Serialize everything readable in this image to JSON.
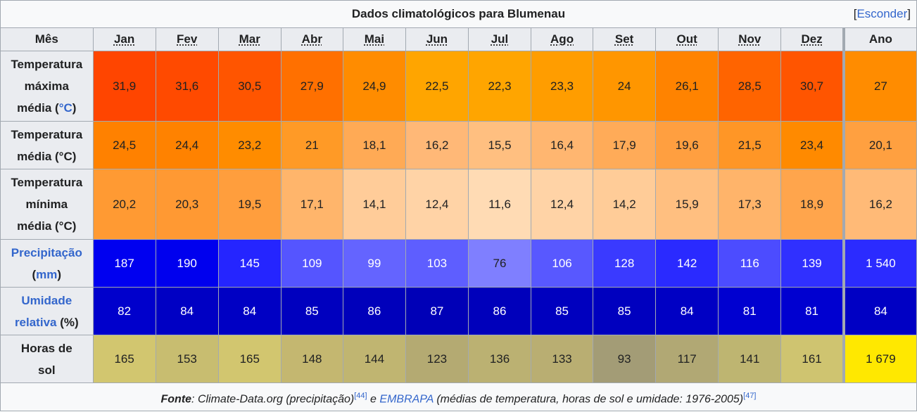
{
  "caption": {
    "title": "Dados climatológicos para Blumenau",
    "toggle_open": "[",
    "toggle_label": "Esconder",
    "toggle_close": "]"
  },
  "header": {
    "label": "Mês",
    "months": [
      "Jan",
      "Fev",
      "Mar",
      "Abr",
      "Mai",
      "Jun",
      "Jul",
      "Ago",
      "Set",
      "Out",
      "Nov",
      "Dez"
    ],
    "annual": "Ano"
  },
  "rows": [
    {
      "id": "tmax",
      "label_lines": [
        "Temperatura",
        "máxima"
      ],
      "label_last_pre": "média (",
      "label_link": "°C",
      "label_last_post": ")",
      "link_first": false,
      "values": [
        "31,9",
        "31,6",
        "30,5",
        "27,9",
        "24,9",
        "22,5",
        "22,3",
        "23,3",
        "24",
        "26,1",
        "28,5",
        "30,7"
      ],
      "annual": "27",
      "colors": [
        "#ff4500",
        "#ff4a00",
        "#ff5500",
        "#ff7000",
        "#ff8c00",
        "#ffa500",
        "#ffa500",
        "#ff9d00",
        "#ff9600",
        "#ff8300",
        "#ff6400",
        "#ff5500"
      ],
      "annual_color": "#ff8c00",
      "text_color": "#202122"
    },
    {
      "id": "tavg",
      "label_lines": [
        "Temperatura"
      ],
      "label_last_pre": "média (°C)",
      "label_link": "",
      "label_last_post": "",
      "link_first": false,
      "values": [
        "24,5",
        "24,4",
        "23,2",
        "21",
        "18,1",
        "16,2",
        "15,5",
        "16,4",
        "17,9",
        "19,6",
        "21,5",
        "23,4"
      ],
      "annual": "20,1",
      "colors": [
        "#ff8100",
        "#ff8200",
        "#ff8c00",
        "#ff9a26",
        "#ffaa55",
        "#ffb877",
        "#ffbf80",
        "#ffb670",
        "#ffab58",
        "#ff9f40",
        "#ff9626",
        "#ff8a00"
      ],
      "annual_color": "#ffa040",
      "text_color": "#202122"
    },
    {
      "id": "tmin",
      "label_lines": [
        "Temperatura",
        "mínima"
      ],
      "label_last_pre": "média (°C)",
      "label_link": "",
      "label_last_post": "",
      "link_first": false,
      "values": [
        "20,2",
        "20,3",
        "19,5",
        "17,1",
        "14,1",
        "12,4",
        "11,6",
        "12,4",
        "14,2",
        "15,9",
        "17,3",
        "18,9"
      ],
      "annual": "16,2",
      "colors": [
        "#ff9a33",
        "#ff9933",
        "#ff9e3d",
        "#ffb56b",
        "#ffcc99",
        "#ffd3a6",
        "#ffdbb4",
        "#ffd3a6",
        "#ffcc98",
        "#ffbf80",
        "#ffb46a",
        "#ffa54c"
      ],
      "annual_color": "#ffba77",
      "text_color": "#202122"
    },
    {
      "id": "prec",
      "label_lines": [],
      "label_link_first": "Precipitação",
      "label_last_pre": "(",
      "label_link": "mm",
      "label_last_post": ")",
      "link_first": true,
      "values": [
        "187",
        "190",
        "145",
        "109",
        "99",
        "103",
        "76",
        "106",
        "128",
        "142",
        "116",
        "139"
      ],
      "annual": "1 540",
      "colors": [
        "#0000f0",
        "#0000ee",
        "#2525ff",
        "#5555ff",
        "#6464ff",
        "#5e5eff",
        "#7f7fff",
        "#5858ff",
        "#3a3aff",
        "#2a2aff",
        "#4c4cff",
        "#3030ff"
      ],
      "annual_color": "#2b2bff",
      "text_color_light": "#ffffff",
      "dark_text_index": 6
    },
    {
      "id": "hum",
      "label_lines": [],
      "label_link_first": "Umidade",
      "label_last_pre": "",
      "label_link": "relativa",
      "label_last_post": " (%)",
      "link_first": true,
      "second_is_link": true,
      "values": [
        "82",
        "84",
        "84",
        "85",
        "86",
        "87",
        "86",
        "85",
        "85",
        "84",
        "81",
        "81"
      ],
      "annual": "84",
      "colors": [
        "#0000cc",
        "#0000c4",
        "#0000c4",
        "#0000bf",
        "#0000bb",
        "#0000b7",
        "#0000bb",
        "#0000bf",
        "#0000bf",
        "#0000c4",
        "#0000d0",
        "#0000d0"
      ],
      "annual_color": "#0000c4",
      "text_color_light": "#ffffff"
    },
    {
      "id": "sun",
      "label_lines": [
        "Horas de"
      ],
      "label_last_pre": "sol",
      "label_link": "",
      "label_last_post": "",
      "link_first": false,
      "values": [
        "165",
        "153",
        "165",
        "148",
        "144",
        "123",
        "136",
        "133",
        "93",
        "117",
        "141",
        "161"
      ],
      "annual": "1 679",
      "colors": [
        "#d2c66f",
        "#c8bd70",
        "#d2c66f",
        "#c4b770",
        "#c0b571",
        "#b4aa72",
        "#bbb172",
        "#b9ae72",
        "#a39c76",
        "#b1a874",
        "#beb571",
        "#cfc470"
      ],
      "annual_color": "#ffe800",
      "text_color": "#202122"
    }
  ],
  "footer": {
    "source_label": "Fonte",
    "part1": ": Climate-Data.org (precipitação)",
    "ref1": "[44]",
    "part2": " e ",
    "link": "EMBRAPA",
    "part3": " (médias de temperatura, horas de sol e umidade: 1976-2005)",
    "ref2": "[47]"
  }
}
